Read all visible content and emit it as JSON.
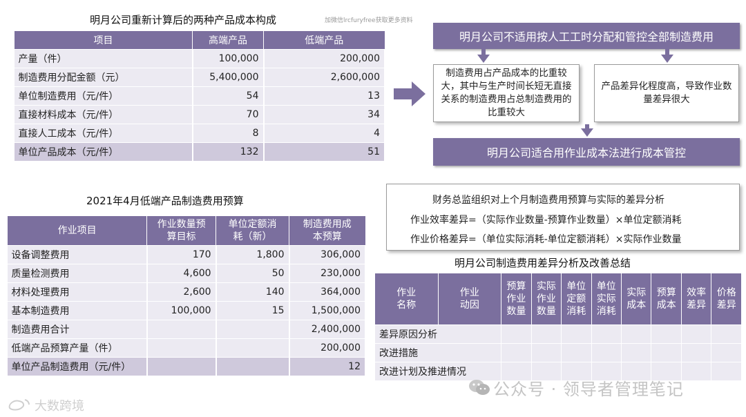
{
  "cost_table": {
    "title": "明月公司重新计算后的两种产品成本构成",
    "watermark": "加微信lrcfuryfree获取更多资料",
    "headers": [
      "项目",
      "高端产品",
      "低端产品"
    ],
    "rows": [
      [
        "产量（件）",
        "100,000",
        "200,000"
      ],
      [
        "制造费用分配金额（元）",
        "5,400,000",
        "2,600,000"
      ],
      [
        "单位制造费用（元/件）",
        "54",
        "13"
      ],
      [
        "直接材料成本（元/件）",
        "70",
        "34"
      ],
      [
        "直接人工成本（元/件）",
        "8",
        "4"
      ]
    ],
    "total_row": [
      "单位产品成本（元/件）",
      "132",
      "51"
    ]
  },
  "flow": {
    "top_box": "明月公司不适用按人工工时分配和管控全部制造费用",
    "left_box": "制造费用占产品成本的比重较大，其中与生产时间长短无直接关系的制造费用占总制造费用的比重较大",
    "right_box": "产品差异化程度高，导致作业数量差异很大",
    "bottom_box": "明月公司适合用作业成本法进行成本管控"
  },
  "budget_table": {
    "title": "2021年4月低端产品制造费用预算",
    "headers": [
      "作业项目",
      "作业数量预算目标",
      "单位定额消耗（新）",
      "制造费用成本预算"
    ],
    "headers_lines": [
      [
        "作业项目"
      ],
      [
        "作业数量预",
        "算目标"
      ],
      [
        "单位定额消",
        "耗（新）"
      ],
      [
        "制造费用成",
        "本预算"
      ]
    ],
    "rows": [
      [
        "设备调整费用",
        "170",
        "1,800",
        "306,000"
      ],
      [
        "质量检测费用",
        "4,600",
        "50",
        "230,000"
      ],
      [
        "材料处理费用",
        "2,600",
        "140",
        "364,000"
      ],
      [
        "基本制造费用",
        "100,000",
        "15",
        "1,500,000"
      ],
      [
        "制造费用合计",
        "",
        "",
        "2,400,000"
      ],
      [
        "低端产品预算产量（件）",
        "",
        "",
        "200,000"
      ]
    ],
    "total_row": [
      "单位产品制造费用（元/件）",
      "",
      "",
      "12"
    ]
  },
  "formulas": {
    "title": "财务总监组织对上个月制造费用预算与实际的差异分析",
    "efficiency": "作业效率差异=（实际作业数量-预算作业数量）×单位定额消耗",
    "price": "作业价格差异=（单位实际消耗-单位定额消耗）×实际作业数量"
  },
  "variance_table": {
    "title": "明月公司制造费用差异分析及改善总结",
    "headers": [
      "作业名称",
      "作业动因",
      "预算作业数量",
      "实际作业数量",
      "单位定额消耗",
      "单位实际消耗",
      "实际成本",
      "预算成本",
      "效率差异",
      "价格差异"
    ],
    "headers_lines": [
      [
        "作业",
        "名称"
      ],
      [
        "作业",
        "动因"
      ],
      [
        "预算",
        "作业",
        "数量"
      ],
      [
        "实际",
        "作业",
        "数量"
      ],
      [
        "单位",
        "定额",
        "消耗"
      ],
      [
        "单位",
        "实际",
        "消耗"
      ],
      [
        "实际",
        "成本"
      ],
      [
        "预算",
        "成本"
      ],
      [
        "效率",
        "差异"
      ],
      [
        "价格",
        "差异"
      ]
    ],
    "row_labels": [
      "差异原因分析",
      "改进措施",
      "改进计划及推进情况"
    ]
  },
  "watermarks": {
    "wechat": "公众号 · 领导者管理笔记",
    "bottom_left": "大数跨境"
  },
  "colors": {
    "header": "#7b6f9e",
    "row": "#eceaf2",
    "total": "#cfc9dc"
  }
}
